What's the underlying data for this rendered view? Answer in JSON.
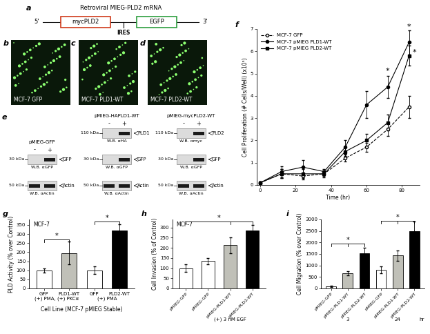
{
  "diagram": {
    "panel": "a",
    "title": "Retroviral MIEG-PLD2 mRNA",
    "five_prime": "5'",
    "three_prime": "3'",
    "boxes": [
      "mycPLD2",
      "EGFP"
    ],
    "ires": "IRES"
  },
  "images": [
    {
      "panel": "b",
      "label": "MCF-7 GFP"
    },
    {
      "panel": "c",
      "label": "MCF-7 PLD1-WT"
    },
    {
      "panel": "d",
      "label": "MCF-7 PLD2-WT"
    }
  ],
  "blots": {
    "panel": "e",
    "columns": [
      {
        "title": "pMIEG-GFP",
        "lanes": [
          "-",
          "+"
        ],
        "rows": [
          {
            "kda": "30 kDa",
            "band": "GFP",
            "antibody": "W.B. αGFP",
            "in_lanes": [
              "+"
            ]
          },
          {
            "kda": "50 kDa",
            "band": "Actin",
            "antibody": "W.B. αActin",
            "in_lanes": [
              "-",
              "+"
            ]
          }
        ]
      },
      {
        "title": "pMIEG-HAPLD1-WT",
        "lanes": [
          "-",
          "+"
        ],
        "rows": [
          {
            "kda": "110 kDa",
            "band": "PLD1",
            "antibody": "W.B. αHA",
            "in_lanes": [
              "+"
            ]
          },
          {
            "kda": "30 kDa",
            "band": "GFP",
            "antibody": "W.B. αGFP",
            "in_lanes": [
              "+"
            ]
          },
          {
            "kda": "50 kDa",
            "band": "Actin",
            "antibody": "W.B. αActin",
            "in_lanes": [
              "-",
              "+"
            ]
          }
        ]
      },
      {
        "title": "pMIEG-mycPLD2-WT",
        "lanes": [
          "-",
          "+"
        ],
        "rows": [
          {
            "kda": "110 kDa",
            "band": "PLD2",
            "antibody": "W.B. αmyc",
            "in_lanes": [
              "+"
            ]
          },
          {
            "kda": "30 kDa",
            "band": "GFP",
            "antibody": "W.B. αGFP",
            "in_lanes": [
              "+"
            ]
          },
          {
            "kda": "50 kDa",
            "band": "Actin",
            "antibody": "W.B. αActin",
            "in_lanes": [
              "-",
              "+"
            ]
          }
        ]
      }
    ]
  },
  "chart_data": [
    {
      "type": "line",
      "panel": "f",
      "x_label": "Time (hr)",
      "y_label": "Cell Proliferation (# Cells/Well) (x10⁵)",
      "x": [
        0,
        12,
        24,
        36,
        48,
        60,
        72,
        84
      ],
      "xlim": [
        -2,
        90
      ],
      "xticks": [
        0,
        20,
        40,
        60,
        80
      ],
      "ylim": [
        0,
        7
      ],
      "yticks": [
        0,
        1,
        2,
        3,
        4,
        5,
        6,
        7
      ],
      "legend": "upper left",
      "series": [
        {
          "name": "MCF-7 GFP",
          "color": "#000000",
          "marker": "open circle",
          "line_style": "dashed",
          "values": [
            0.1,
            0.5,
            0.4,
            0.5,
            1.2,
            1.7,
            2.5,
            3.5
          ],
          "errors": [
            0.05,
            0.2,
            0.15,
            0.1,
            0.15,
            0.2,
            0.3,
            0.5
          ]
        },
        {
          "name": "MCF-7 pMIEG PLD1-WT",
          "color": "#000000",
          "marker": "circle",
          "line_style": "solid",
          "values": [
            0.1,
            0.6,
            0.8,
            0.6,
            1.7,
            3.6,
            4.4,
            6.4
          ],
          "errors": [
            0.05,
            0.25,
            0.3,
            0.1,
            0.3,
            0.6,
            0.5,
            0.55
          ]
        },
        {
          "name": "MCF-7 pMIEG PLD2-WT",
          "color": "#000000",
          "marker": "square",
          "line_style": "solid",
          "values": [
            0.1,
            0.5,
            0.5,
            0.5,
            1.5,
            2.0,
            2.8,
            5.8
          ],
          "errors": [
            0.05,
            0.2,
            0.2,
            0.15,
            0.2,
            0.3,
            0.35,
            0.45
          ]
        }
      ],
      "annotations": [
        {
          "x": 72,
          "y": 4.95,
          "text": "*"
        },
        {
          "x": 84,
          "y": 6.95,
          "text": "*"
        },
        {
          "x": 87,
          "y": 5.8,
          "text": "*"
        }
      ]
    },
    {
      "type": "bar",
      "panel": "g",
      "inset_text": "MCF-7",
      "categories": [
        "GFP",
        "PLD1-WT",
        "GFP",
        "PLD2-WT"
      ],
      "values": [
        100,
        195,
        100,
        320
      ],
      "errors": [
        12,
        62,
        22,
        35
      ],
      "colors": [
        "#ffffff",
        "#c0c0b8",
        "#ffffff",
        "#000000"
      ],
      "ylim": [
        0,
        380
      ],
      "yticks": [
        0,
        50,
        100,
        150,
        200,
        250,
        300,
        350
      ],
      "y_label": "PLD Activity (% over Control)",
      "x_label": "Cell Line (MCF-7 pMIEG Stable)",
      "groups": [
        {
          "label": "(+) PMA, (+) PKCα",
          "members": [
            0,
            1
          ]
        },
        {
          "label": "(+) PMA",
          "members": [
            2,
            3
          ]
        }
      ],
      "significance": [
        {
          "from": 0,
          "to": [
            1
          ],
          "y": 270,
          "text": "*"
        },
        {
          "from": 2,
          "to": [
            3
          ],
          "y": 368,
          "text": "*"
        }
      ]
    },
    {
      "type": "bar",
      "panel": "h",
      "inset_text": "MCF-7",
      "categories": [
        "pMIEG-GFP",
        "pMIEG-GFP",
        "pMIEG-PLD1-WT",
        "pMIEG-PLD2-WT"
      ],
      "values": [
        100,
        135,
        213,
        285
      ],
      "errors": [
        20,
        15,
        38,
        28
      ],
      "colors": [
        "#ffffff",
        "#ffffff",
        "#c0c0b8",
        "#000000"
      ],
      "ylim": [
        0,
        340
      ],
      "yticks": [
        0,
        50,
        100,
        150,
        200,
        250,
        300
      ],
      "y_label": "Cell Invasion (% of Control)",
      "groups": [
        {
          "label": "(+) 3 nM EGF",
          "members": [
            1,
            2,
            3
          ]
        }
      ],
      "significance": [
        {
          "from": 0,
          "to": [
            2,
            3
          ],
          "y": 330,
          "text": "*"
        }
      ]
    },
    {
      "type": "bar",
      "panel": "i",
      "categories": [
        "pMIEG-GFP",
        "pMIEG-PLD1-WT",
        "pMIEG-PLD2-WT",
        "pMIEG-GFP",
        "pMIEG-PLD1-WT",
        "pMIEG-PLD2-WT"
      ],
      "values": [
        100,
        660,
        1540,
        800,
        1430,
        2500
      ],
      "errors": [
        30,
        90,
        220,
        150,
        220,
        420
      ],
      "colors": [
        "#ffffff",
        "#c0c0b8",
        "#000000",
        "#ffffff",
        "#c0c0b8",
        "#000000"
      ],
      "ylim": [
        0,
        3000
      ],
      "yticks": [
        0,
        500,
        1000,
        1500,
        2000,
        2500,
        3000
      ],
      "y_label": "Cell Migration (% over Control)",
      "groups": [
        {
          "label": "3",
          "members": [
            0,
            1,
            2
          ]
        },
        {
          "label": "24",
          "members": [
            3,
            4,
            5
          ]
        }
      ],
      "group_unit": "hr",
      "significance": [
        {
          "from": 0,
          "to": [
            1,
            2
          ],
          "y": 1950,
          "text": "*"
        },
        {
          "from": 3,
          "to": [
            4,
            5
          ],
          "y": 2950,
          "text": "*"
        }
      ]
    }
  ]
}
